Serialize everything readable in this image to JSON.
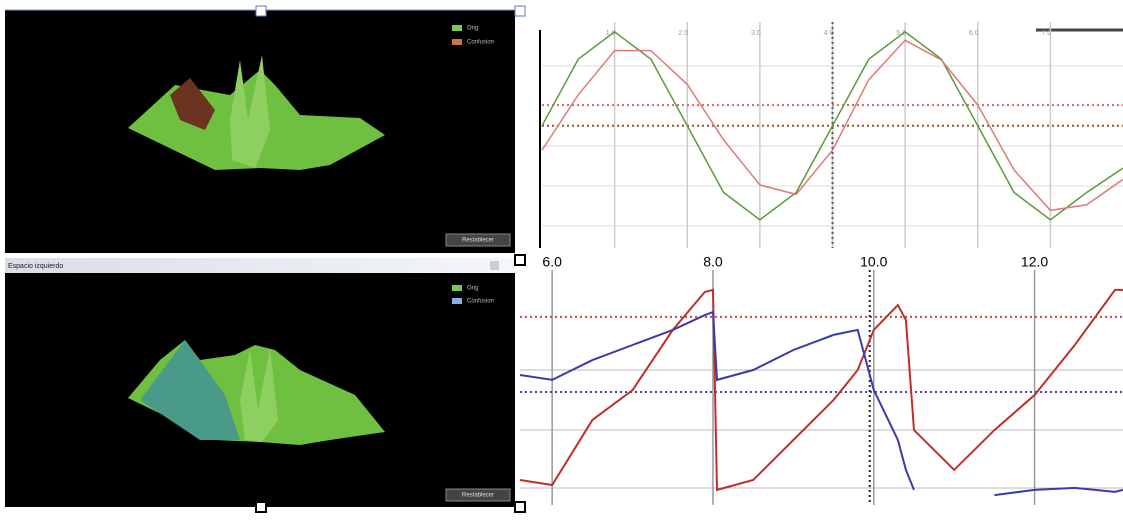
{
  "top_panel": {
    "legend": [
      "Orig",
      "Confusion"
    ],
    "button": "Restablecer"
  },
  "bottom_panel": {
    "title": "Espacio izquierdo",
    "legend": [
      "Orig",
      "Confusion"
    ],
    "button": "Restablecer"
  },
  "chart_data": [
    {
      "type": "line",
      "x": [
        0,
        0.5,
        1,
        1.5,
        2,
        2.5,
        3,
        3.5,
        4,
        4.5,
        5,
        5.5,
        6,
        6.5,
        7,
        7.5,
        8
      ],
      "series": [
        {
          "name": "Orig",
          "color": "#5a9a3a",
          "values": [
            0,
            0.71,
            1,
            0.71,
            0,
            -0.71,
            -1,
            -0.71,
            0,
            0.71,
            1,
            0.71,
            0,
            -0.71,
            -1,
            -0.71,
            -0.45
          ]
        },
        {
          "name": "Confusion",
          "color": "#e07a78",
          "values": [
            -0.26,
            0.33,
            0.8,
            0.8,
            0.44,
            -0.15,
            -0.63,
            -0.73,
            -0.26,
            0.49,
            0.91,
            0.7,
            0.22,
            -0.47,
            -0.9,
            -0.84,
            -0.57
          ]
        }
      ],
      "xlim": [
        0,
        8
      ],
      "ylim": [
        -1.3,
        1.2
      ],
      "xticks": [
        {
          "value": 1,
          "label": "1.0"
        },
        {
          "value": 2,
          "label": "2.0"
        },
        {
          "value": 3,
          "label": "3.0"
        },
        {
          "value": 4,
          "label": "4.0"
        },
        {
          "value": 5,
          "label": "5.0"
        },
        {
          "value": 6,
          "label": "6.0"
        },
        {
          "value": 7,
          "label": "7.0"
        }
      ],
      "hlines": [
        {
          "value": 0.22,
          "color": "#e06060"
        },
        {
          "value": 0,
          "color": "#8b5a2b"
        }
      ],
      "vlines": [
        {
          "value": 4,
          "color": "#555555"
        }
      ]
    },
    {
      "type": "line",
      "x": [
        5.6,
        6.0,
        6.5,
        7.0,
        7.5,
        7.9,
        8.0,
        8.05,
        8.5,
        9.0,
        9.5,
        9.8,
        10.0,
        10.3,
        10.4,
        10.5,
        11.0,
        11.5,
        12.0,
        12.5,
        13.0,
        13.1
      ],
      "series": [
        {
          "name": "Orig",
          "color": "#c0302a",
          "values": [
            11.1,
            8.9,
            37.8,
            51.1,
            77.8,
            94.7,
            95.6,
            6.7,
            11.1,
            28.9,
            46.7,
            60,
            77.8,
            88.9,
            82.2,
            33.3,
            15.6,
            33.3,
            48.9,
            71.1,
            95.6,
            95.6
          ]
        },
        {
          "name": "Confusion",
          "color": "#3a3ab0",
          "values": [
            57.8,
            55.6,
            64.4,
            71.1,
            77.8,
            84.4,
            85.8,
            55.6,
            60,
            68.9,
            75.6,
            77.8,
            51.1,
            28.9,
            15.6,
            6.7,
            null,
            4.4,
            6.7,
            7.6,
            5.8,
            6.7
          ]
        }
      ],
      "xlim": [
        5.6,
        13.1
      ],
      "ylim": [
        0,
        100
      ],
      "xticks": [
        {
          "value": 6,
          "label": "6.0"
        },
        {
          "value": 8,
          "label": "8.0"
        },
        {
          "value": 10,
          "label": "10.0"
        },
        {
          "value": 12,
          "label": "12.0"
        }
      ],
      "hlines": [
        {
          "value": 83.6,
          "color": "#d04040"
        },
        {
          "value": 50.2,
          "color": "#4040c0"
        }
      ],
      "vlines": [
        {
          "value": 9.95,
          "color": "#222222"
        }
      ]
    }
  ]
}
